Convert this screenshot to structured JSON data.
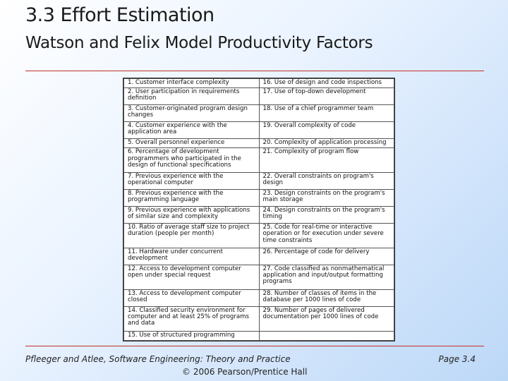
{
  "slide": {
    "title": "3.3 Effort Estimation",
    "subtitle": "Watson and Felix Model Productivity Factors"
  },
  "table": {
    "rows": [
      [
        "1.  Customer interface complexity",
        "16.  Use of design and code inspections"
      ],
      [
        "2.  User participation in requirements definition",
        "17.  Use of top-down development"
      ],
      [
        "3.  Customer-originated program design changes",
        "18.  Use of a chief programmer team"
      ],
      [
        "4.  Customer experience with the application area",
        "19.  Overall complexity of code"
      ],
      [
        "5.  Overall personnel experience",
        "20.  Complexity of application processing"
      ],
      [
        "6.  Percentage of development programmers who participated in the design of functional specifications",
        "21.  Complexity of program flow"
      ],
      [
        "7.  Previous experience with the operational computer",
        "22.  Overall constraints on program's design"
      ],
      [
        "8.  Previous experience with the programming language",
        "23.  Design constraints on the program's main storage"
      ],
      [
        "9.  Previous experience with applications of similar size and complexity",
        "24.  Design constraints on the program's timing"
      ],
      [
        "10.  Ratio of average staff size to project duration (people per month)",
        "25.  Code for real-time or interactive operation or for execution under severe time constraints"
      ],
      [
        "11.  Hardware under concurrent development",
        "26.  Percentage of code for delivery"
      ],
      [
        "12.  Access to development computer open under special request",
        "27.  Code classified as nonmathematical application and input/output formatting programs"
      ],
      [
        "13.  Access to development computer closed",
        "28.  Number of classes of items in the database per 1000 lines of code"
      ],
      [
        "14.  Classified security environment for computer and at least 25% of programs and data",
        "29.  Number of pages of delivered documentation per 1000 lines of code"
      ],
      [
        "15.  Use of structured programming",
        ""
      ]
    ]
  },
  "footer": {
    "citation": "Pfleeger and Atlee, Software Engineering: Theory and Practice",
    "copyright": "© 2006 Pearson/Prentice Hall",
    "page": "Page 3.4"
  },
  "colors": {
    "rule": "#c0302a",
    "background_start": "#ffffff",
    "background_end": "#bcd8f7"
  }
}
